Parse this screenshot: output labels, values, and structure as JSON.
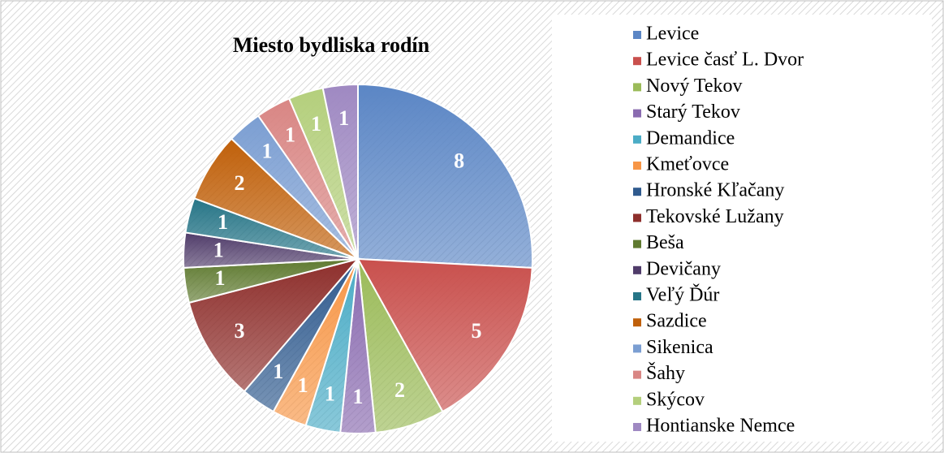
{
  "chart_data": {
    "type": "pie",
    "title": "Miesto bydliska rodín",
    "categories": [
      "Levice",
      "Levice časť L. Dvor",
      "Nový Tekov",
      "Starý Tekov",
      "Demandice",
      "Kmeťovce",
      "Hronské Kľačany",
      "Tekovské Lužany",
      "Beša",
      "Devičany",
      "Veľý Ďúr",
      "Sazdice",
      "Sikenica",
      "Šahy",
      "Skýcov",
      "Hontianske Nemce"
    ],
    "values": [
      8,
      5,
      2,
      1,
      1,
      1,
      1,
      3,
      1,
      1,
      1,
      2,
      1,
      1,
      1,
      1
    ],
    "colors": [
      "#5b86c5",
      "#c9504d",
      "#9bbb59",
      "#8a6bb0",
      "#4bacc6",
      "#f79646",
      "#2f5a8e",
      "#8e2f2c",
      "#5f7a30",
      "#503c6a",
      "#267587",
      "#c0600a",
      "#7b9ed2",
      "#d98684",
      "#b4cf7c",
      "#9f89c2"
    ],
    "legend": "right"
  }
}
